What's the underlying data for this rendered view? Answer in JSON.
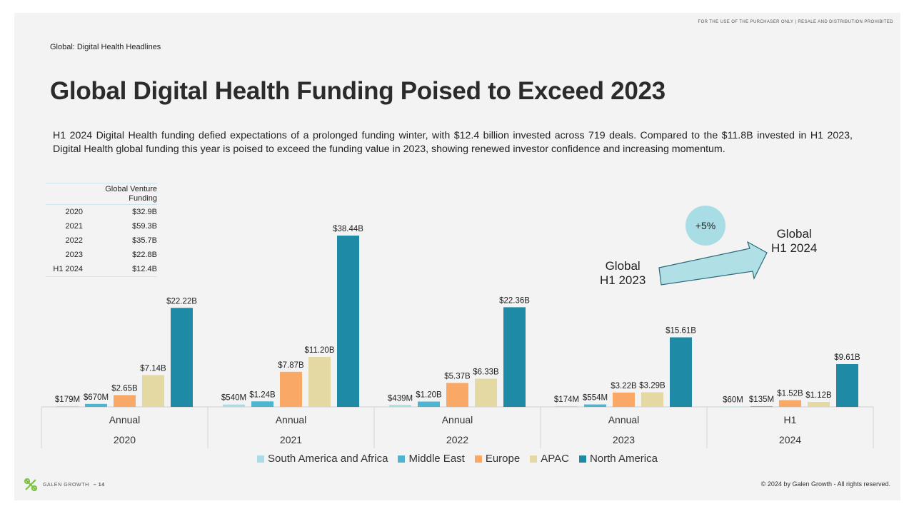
{
  "header": {
    "disclaimer": "FOR THE USE OF THE PURCHASER ONLY | RESALE AND DISTRIBUTION PROHIBITED",
    "section": "Global: Digital Health Headlines",
    "title": "Global Digital Health Funding Poised to Exceed 2023",
    "description": "H1 2024 Digital Health funding defied expectations of a prolonged funding winter, with $12.4 billion invested across 719 deals. Compared to the $11.8B invested in H1 2023, Digital Health global funding this year is poised to exceed the funding value in 2023, showing renewed investor confidence and increasing momentum."
  },
  "summary_table": {
    "header_line1": "Global Venture",
    "header_line2": "Funding",
    "rows": [
      {
        "period": "2020",
        "value": "$32.9B"
      },
      {
        "period": "2021",
        "value": "$59.3B"
      },
      {
        "period": "2022",
        "value": "$35.7B"
      },
      {
        "period": "2023",
        "value": "$22.8B"
      },
      {
        "period": "H1 2024",
        "value": "$12.4B"
      }
    ]
  },
  "callout": {
    "growth": "+5%",
    "from_line1": "Global",
    "from_line2": "H1 2023",
    "to_line1": "Global",
    "to_line2": "H1 2024",
    "arrow_color": "#b0dfe6"
  },
  "chart_data": {
    "type": "bar",
    "groups": [
      {
        "period": "Annual",
        "year": "2020"
      },
      {
        "period": "Annual",
        "year": "2021"
      },
      {
        "period": "Annual",
        "year": "2022"
      },
      {
        "period": "Annual",
        "year": "2023"
      },
      {
        "period": "H1",
        "year": "2024"
      }
    ],
    "series": [
      {
        "name": "South America and Africa",
        "color": "#a9dde6",
        "values": [
          0.179,
          0.54,
          0.439,
          0.174,
          0.06
        ],
        "labels": [
          "$179M",
          "$540M",
          "$439M",
          "$174M",
          "$60M"
        ]
      },
      {
        "name": "Middle East",
        "color": "#4bb5d2",
        "values": [
          0.67,
          1.24,
          1.2,
          0.554,
          0.135
        ],
        "labels": [
          "$670M",
          "$1.24B",
          "$1.20B",
          "$554M",
          "$135M"
        ]
      },
      {
        "name": "Europe",
        "color": "#f9a965",
        "values": [
          2.65,
          7.87,
          5.37,
          3.22,
          1.52
        ],
        "labels": [
          "$2.65B",
          "$7.87B",
          "$5.37B",
          "$3.22B",
          "$1.52B"
        ]
      },
      {
        "name": "APAC",
        "color": "#e4d9a2",
        "values": [
          7.14,
          11.2,
          6.33,
          3.29,
          1.12
        ],
        "labels": [
          "$7.14B",
          "$11.20B",
          "$6.33B",
          "$3.29B",
          "$1.12B"
        ]
      },
      {
        "name": "North America",
        "color": "#1e8aa5",
        "values": [
          22.22,
          38.44,
          22.36,
          15.61,
          9.61
        ],
        "labels": [
          "$22.22B",
          "$38.44B",
          "$22.36B",
          "$15.61B",
          "$9.61B"
        ]
      }
    ],
    "unit": "B",
    "ylim": [
      0,
      38.44
    ],
    "grid": false,
    "legend_position": "bottom"
  },
  "footer": {
    "brand": "GALEN GROWTH",
    "page_number": "– 14",
    "copyright": "© 2024 by Galen Growth - All rights reserved.",
    "logo_color": "#7cc242"
  }
}
